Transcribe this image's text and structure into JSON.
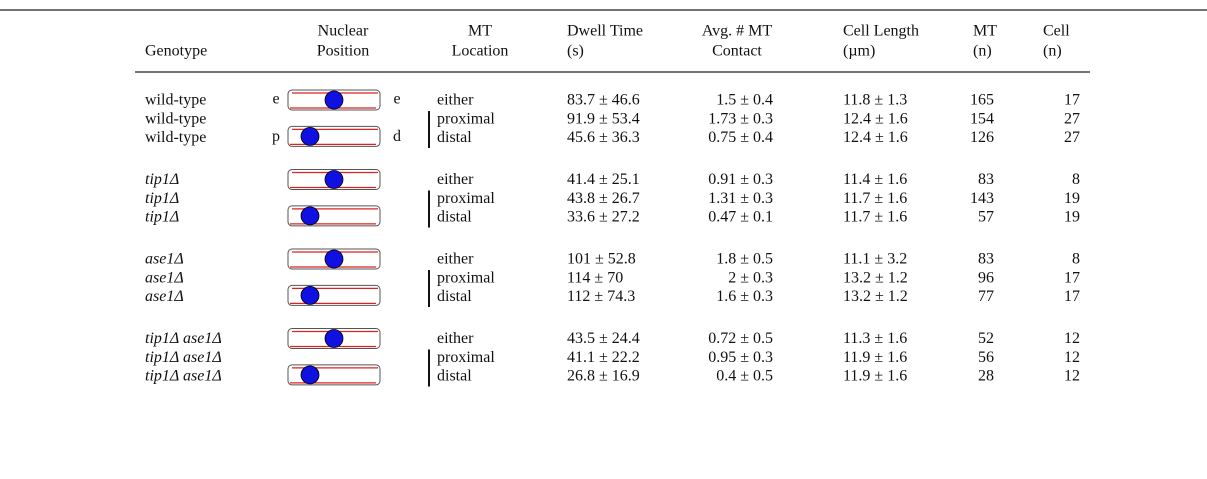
{
  "table": {
    "headers": [
      [
        "Genotype"
      ],
      [
        "Nuclear",
        "Position"
      ],
      [
        "MT",
        "Location"
      ],
      [
        "Dwell Time",
        "(s)"
      ],
      [
        "Avg. # MT",
        "Contact"
      ],
      [
        "Cell Length",
        "(µm)"
      ],
      [
        "MT",
        "(n)"
      ],
      [
        "Cell",
        "(n)"
      ]
    ],
    "groups": [
      {
        "rows": [
          {
            "genotype": "wild-type",
            "left_mark": "e",
            "right_mark": "e",
            "location": "either",
            "dwell_time": "83.7 ± 46.6",
            "mt_contact": "1.5 ± 0.4",
            "cell_length": "11.8 ± 1.3",
            "mt_n": 165,
            "cell_n": 17
          },
          {
            "genotype": "wild-type",
            "location": "proximal",
            "dwell_time": "91.9 ± 53.4",
            "mt_contact": "1.73 ± 0.3",
            "cell_length": "12.4 ± 1.6",
            "mt_n": 154,
            "cell_n": 27
          },
          {
            "genotype": "wild-type",
            "left_mark": "p",
            "right_mark": "d",
            "location": "distal",
            "dwell_time": "45.6 ± 36.3",
            "mt_contact": "0.75 ± 0.4",
            "cell_length": "12.4 ± 1.6",
            "mt_n": 126,
            "cell_n": 27
          }
        ]
      },
      {
        "rows": [
          {
            "genotype": "tip1Δ",
            "location": "either",
            "dwell_time": "41.4 ± 25.1",
            "mt_contact": "0.91 ± 0.3",
            "cell_length": "11.4 ± 1.6",
            "mt_n": 83,
            "cell_n": 8
          },
          {
            "genotype": "tip1Δ",
            "location": "proximal",
            "dwell_time": "43.8 ± 26.7",
            "mt_contact": "1.31 ± 0.3",
            "cell_length": "11.7 ± 1.6",
            "mt_n": 143,
            "cell_n": 19
          },
          {
            "genotype": "tip1Δ",
            "location": "distal",
            "dwell_time": "33.6 ± 27.2",
            "mt_contact": "0.47 ± 0.1",
            "cell_length": "11.7 ± 1.6",
            "mt_n": 57,
            "cell_n": 19
          }
        ]
      },
      {
        "rows": [
          {
            "genotype": "ase1Δ",
            "location": "either",
            "dwell_time": "101 ± 52.8",
            "mt_contact": "1.8 ± 0.5",
            "cell_length": "11.1 ± 3.2",
            "mt_n": 83,
            "cell_n": 8
          },
          {
            "genotype": "ase1Δ",
            "location": "proximal",
            "dwell_time": "114 ± 70",
            "mt_contact": "2 ± 0.3",
            "cell_length": "13.2 ± 1.2",
            "mt_n": 96,
            "cell_n": 17
          },
          {
            "genotype": "ase1Δ",
            "location": "distal",
            "dwell_time": "112 ± 74.3",
            "mt_contact": "1.6 ± 0.3",
            "cell_length": "13.2 ± 1.2",
            "mt_n": 77,
            "cell_n": 17
          }
        ]
      },
      {
        "rows": [
          {
            "genotype": "tip1Δ ase1Δ",
            "location": "either",
            "dwell_time": "43.5 ± 24.4",
            "mt_contact": "0.72 ± 0.5",
            "cell_length": "11.3 ± 1.6",
            "mt_n": 52,
            "cell_n": 12
          },
          {
            "genotype": "tip1Δ ase1Δ",
            "location": "proximal",
            "dwell_time": "41.1 ± 22.2",
            "mt_contact": "0.95 ± 0.3",
            "cell_length": "11.9 ± 1.6",
            "mt_n": 56,
            "cell_n": 12
          },
          {
            "genotype": "tip1Δ ase1Δ",
            "location": "distal",
            "dwell_time": "26.8 ± 16.9",
            "mt_contact": "0.4 ± 0.5",
            "cell_length": "11.9 ± 1.6",
            "mt_n": 28,
            "cell_n": 12
          }
        ]
      }
    ]
  }
}
